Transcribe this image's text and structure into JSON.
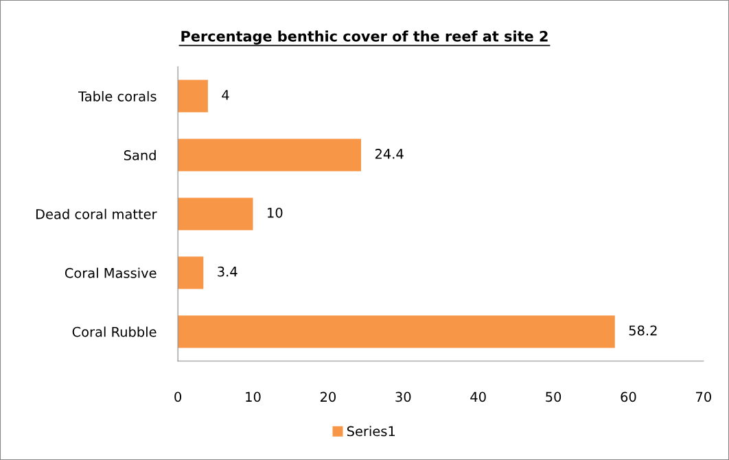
{
  "chart_data": {
    "type": "bar",
    "orientation": "horizontal",
    "title": "Percentage benthic cover of the reef at site 2",
    "categories": [
      "Table corals",
      "Sand",
      "Dead coral matter",
      "Coral Massive",
      "Coral Rubble"
    ],
    "series": [
      {
        "name": "Series1",
        "color": "#f79646",
        "values": [
          4,
          24.4,
          10,
          3.4,
          58.2
        ]
      }
    ],
    "xlim": [
      0,
      70
    ],
    "xticks": [
      0,
      10,
      20,
      30,
      40,
      50,
      60,
      70
    ],
    "data_labels": true,
    "grid": false,
    "legend": "bottom"
  }
}
